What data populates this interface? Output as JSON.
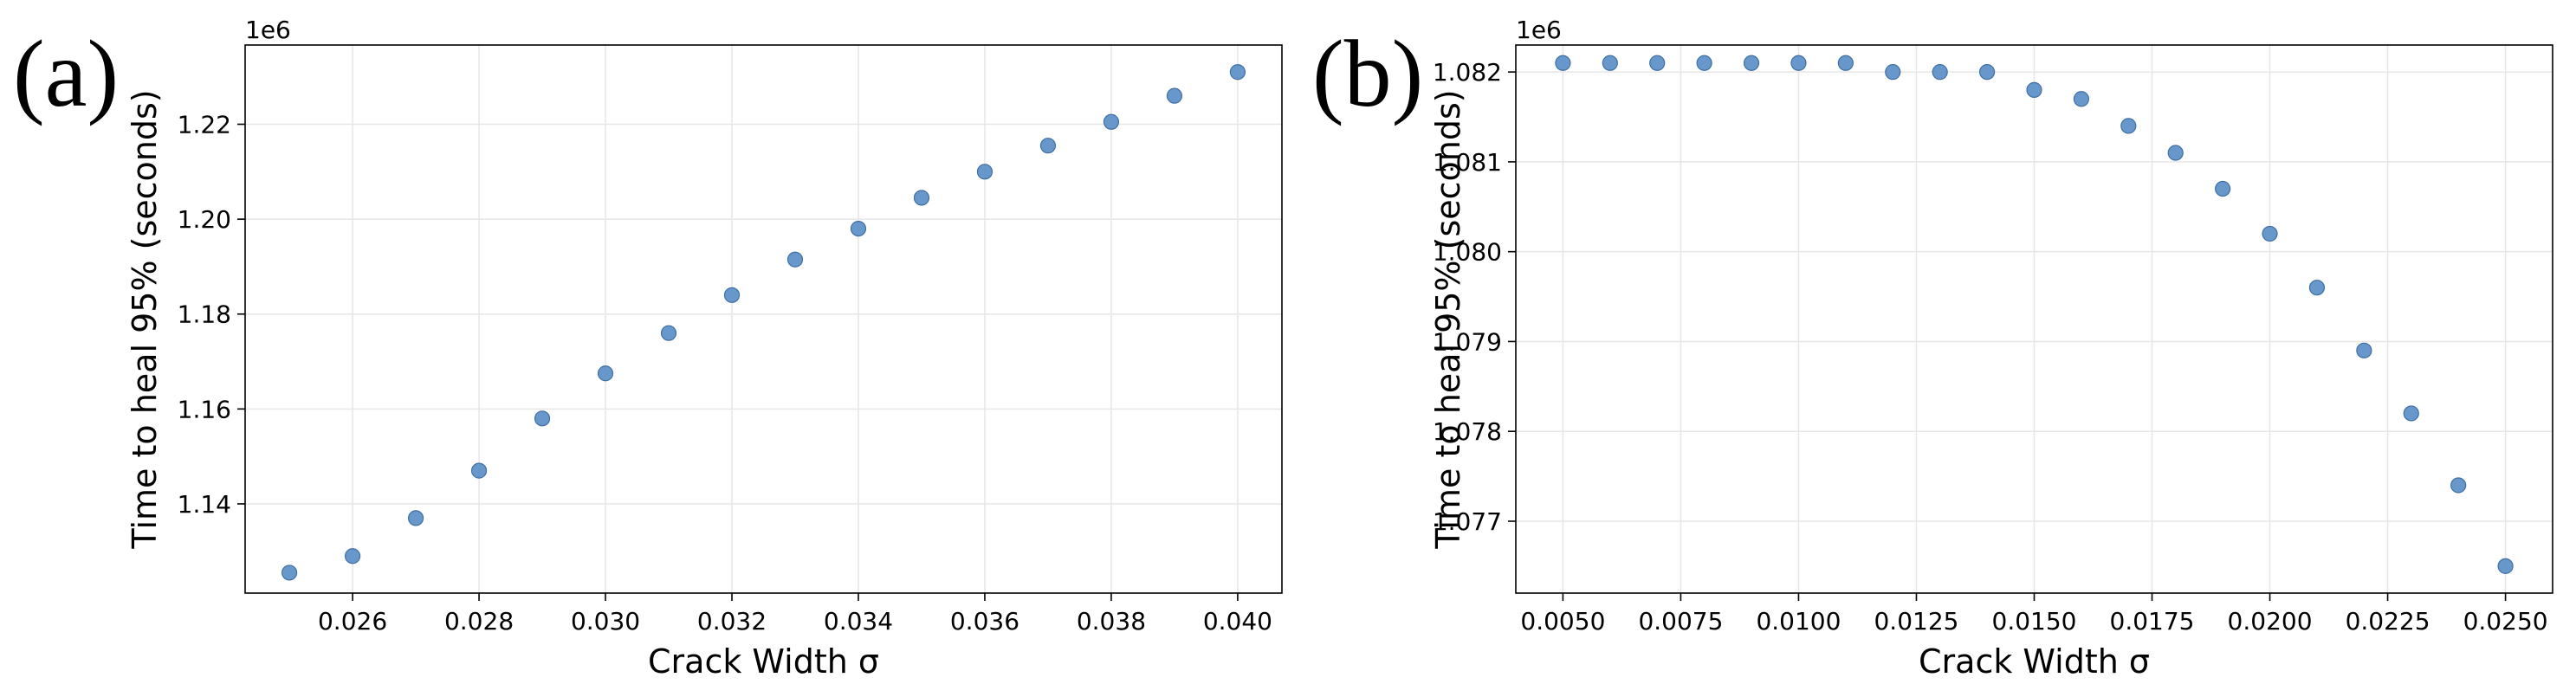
{
  "chart_data": [
    {
      "type": "scatter",
      "panel_label": "(a)",
      "xlabel": "Crack Width σ",
      "ylabel": "Time to heal 95% (seconds)",
      "y_offset_label": "1e6",
      "grid": true,
      "xlim": [
        0.0243,
        0.0407
      ],
      "ylim": [
        1.1212,
        1.2367
      ],
      "x_ticks": [
        0.026,
        0.028,
        0.03,
        0.032,
        0.034,
        0.036,
        0.038,
        0.04
      ],
      "x_tick_labels": [
        "0.026",
        "0.028",
        "0.030",
        "0.032",
        "0.034",
        "0.036",
        "0.038",
        "0.040"
      ],
      "y_ticks": [
        1.14,
        1.16,
        1.18,
        1.2,
        1.22
      ],
      "y_tick_labels": [
        "1.14",
        "1.16",
        "1.18",
        "1.20",
        "1.22"
      ],
      "marker_color": "#5b8fc7",
      "x": [
        0.025,
        0.026,
        0.027,
        0.028,
        0.029,
        0.03,
        0.031,
        0.032,
        0.033,
        0.034,
        0.035,
        0.036,
        0.037,
        0.038,
        0.039,
        0.04
      ],
      "y": [
        1.1255,
        1.129,
        1.137,
        1.147,
        1.158,
        1.1675,
        1.176,
        1.184,
        1.1915,
        1.198,
        1.2045,
        1.21,
        1.2155,
        1.2205,
        1.226,
        1.231
      ]
    },
    {
      "type": "scatter",
      "panel_label": "(b)",
      "xlabel": "Crack Width σ",
      "ylabel": "Time to heal 95% (seconds)",
      "y_offset_label": "1e6",
      "grid": true,
      "xlim": [
        0.004,
        0.026
      ],
      "ylim": [
        1.0762,
        1.0823
      ],
      "x_ticks": [
        0.005,
        0.0075,
        0.01,
        0.0125,
        0.015,
        0.0175,
        0.02,
        0.0225,
        0.025
      ],
      "x_tick_labels": [
        "0.0050",
        "0.0075",
        "0.0100",
        "0.0125",
        "0.0150",
        "0.0175",
        "0.0200",
        "0.0225",
        "0.0250"
      ],
      "y_ticks": [
        1.077,
        1.078,
        1.079,
        1.08,
        1.081,
        1.082
      ],
      "y_tick_labels": [
        "1.077",
        "1.078",
        "1.079",
        "1.080",
        "1.081",
        "1.082"
      ],
      "marker_color": "#5b8fc7",
      "x": [
        0.005,
        0.006,
        0.007,
        0.008,
        0.009,
        0.01,
        0.011,
        0.012,
        0.013,
        0.014,
        0.015,
        0.016,
        0.017,
        0.018,
        0.019,
        0.02,
        0.021,
        0.022,
        0.023,
        0.024,
        0.025
      ],
      "y": [
        1.0821,
        1.0821,
        1.0821,
        1.0821,
        1.0821,
        1.0821,
        1.0821,
        1.082,
        1.082,
        1.082,
        1.0818,
        1.0817,
        1.0814,
        1.0811,
        1.0807,
        1.0802,
        1.0796,
        1.0789,
        1.0782,
        1.0774,
        1.0765
      ]
    }
  ]
}
